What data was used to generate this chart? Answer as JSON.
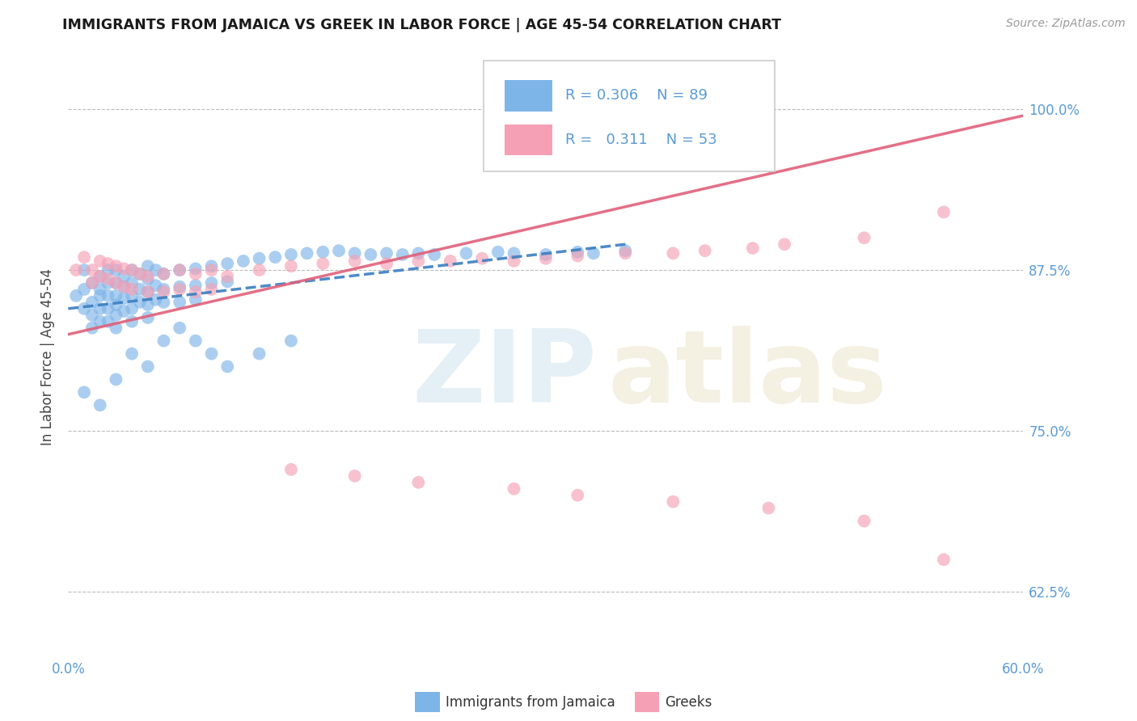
{
  "title": "IMMIGRANTS FROM JAMAICA VS GREEK IN LABOR FORCE | AGE 45-54 CORRELATION CHART",
  "source": "Source: ZipAtlas.com",
  "ylabel": "In Labor Force | Age 45-54",
  "xlim": [
    0.0,
    0.6
  ],
  "ylim": [
    0.575,
    1.04
  ],
  "xticks": [
    0.0,
    0.1,
    0.2,
    0.3,
    0.4,
    0.5,
    0.6
  ],
  "xticklabels": [
    "0.0%",
    "",
    "",
    "",
    "",
    "",
    "60.0%"
  ],
  "yticks": [
    0.625,
    0.75,
    0.875,
    1.0
  ],
  "yticklabels": [
    "62.5%",
    "75.0%",
    "87.5%",
    "100.0%"
  ],
  "jamaica_color": "#7eb5e8",
  "greek_color": "#f5a0b5",
  "jamaica_line_color": "#3a7fc1",
  "greek_line_color": "#e0607a",
  "jamaica_R": 0.306,
  "jamaica_N": 89,
  "greek_R": 0.311,
  "greek_N": 53,
  "legend_label_jamaica": "Immigrants from Jamaica",
  "legend_label_greek": "Greeks",
  "jamaica_line_x0": 0.0,
  "jamaica_line_y0": 0.845,
  "jamaica_line_x1": 0.35,
  "jamaica_line_y1": 0.895,
  "greek_line_x0": 0.0,
  "greek_line_y0": 0.825,
  "greek_line_x1": 0.6,
  "greek_line_y1": 0.995,
  "jamaica_x": [
    0.005,
    0.01,
    0.01,
    0.01,
    0.015,
    0.015,
    0.015,
    0.015,
    0.02,
    0.02,
    0.02,
    0.02,
    0.02,
    0.025,
    0.025,
    0.025,
    0.025,
    0.025,
    0.03,
    0.03,
    0.03,
    0.03,
    0.03,
    0.03,
    0.035,
    0.035,
    0.035,
    0.035,
    0.04,
    0.04,
    0.04,
    0.04,
    0.04,
    0.045,
    0.045,
    0.045,
    0.05,
    0.05,
    0.05,
    0.05,
    0.05,
    0.055,
    0.055,
    0.055,
    0.06,
    0.06,
    0.06,
    0.07,
    0.07,
    0.07,
    0.08,
    0.08,
    0.08,
    0.09,
    0.09,
    0.1,
    0.1,
    0.11,
    0.12,
    0.13,
    0.14,
    0.15,
    0.16,
    0.17,
    0.18,
    0.19,
    0.2,
    0.21,
    0.22,
    0.23,
    0.25,
    0.27,
    0.28,
    0.3,
    0.32,
    0.33,
    0.35,
    0.01,
    0.02,
    0.03,
    0.04,
    0.05,
    0.06,
    0.07,
    0.08,
    0.09,
    0.1,
    0.12,
    0.14
  ],
  "jamaica_y": [
    0.855,
    0.875,
    0.86,
    0.845,
    0.865,
    0.85,
    0.84,
    0.83,
    0.87,
    0.86,
    0.855,
    0.845,
    0.835,
    0.875,
    0.865,
    0.855,
    0.845,
    0.835,
    0.875,
    0.865,
    0.855,
    0.848,
    0.84,
    0.83,
    0.87,
    0.862,
    0.853,
    0.843,
    0.875,
    0.865,
    0.855,
    0.845,
    0.835,
    0.872,
    0.86,
    0.85,
    0.878,
    0.868,
    0.858,
    0.848,
    0.838,
    0.875,
    0.863,
    0.852,
    0.872,
    0.86,
    0.85,
    0.875,
    0.862,
    0.85,
    0.876,
    0.863,
    0.852,
    0.878,
    0.865,
    0.88,
    0.866,
    0.882,
    0.884,
    0.885,
    0.887,
    0.888,
    0.889,
    0.89,
    0.888,
    0.887,
    0.888,
    0.887,
    0.888,
    0.887,
    0.888,
    0.889,
    0.888,
    0.887,
    0.889,
    0.888,
    0.89,
    0.78,
    0.77,
    0.79,
    0.81,
    0.8,
    0.82,
    0.83,
    0.82,
    0.81,
    0.8,
    0.81,
    0.82
  ],
  "greek_x": [
    0.005,
    0.01,
    0.015,
    0.015,
    0.02,
    0.02,
    0.025,
    0.025,
    0.03,
    0.03,
    0.035,
    0.035,
    0.04,
    0.04,
    0.045,
    0.05,
    0.05,
    0.06,
    0.06,
    0.07,
    0.07,
    0.08,
    0.08,
    0.09,
    0.09,
    0.1,
    0.12,
    0.14,
    0.16,
    0.18,
    0.2,
    0.22,
    0.24,
    0.26,
    0.28,
    0.3,
    0.32,
    0.35,
    0.38,
    0.4,
    0.43,
    0.45,
    0.5,
    0.55,
    0.14,
    0.18,
    0.22,
    0.28,
    0.32,
    0.38,
    0.44,
    0.5,
    0.55
  ],
  "greek_y": [
    0.875,
    0.885,
    0.875,
    0.865,
    0.882,
    0.87,
    0.88,
    0.868,
    0.878,
    0.865,
    0.876,
    0.862,
    0.875,
    0.86,
    0.872,
    0.87,
    0.858,
    0.872,
    0.858,
    0.875,
    0.86,
    0.872,
    0.858,
    0.875,
    0.86,
    0.87,
    0.875,
    0.878,
    0.88,
    0.882,
    0.88,
    0.882,
    0.882,
    0.884,
    0.882,
    0.884,
    0.886,
    0.888,
    0.888,
    0.89,
    0.892,
    0.895,
    0.9,
    0.92,
    0.72,
    0.715,
    0.71,
    0.705,
    0.7,
    0.695,
    0.69,
    0.68,
    0.65
  ]
}
